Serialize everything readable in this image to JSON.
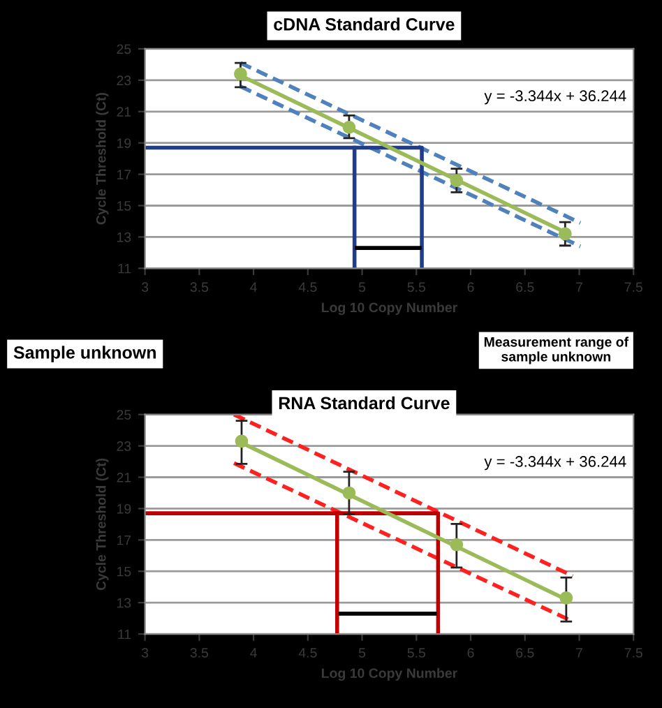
{
  "chart_data": [
    {
      "type": "scatter",
      "title": "cDNA Standard Curve",
      "xlabel": "Log 10 Copy Number",
      "ylabel": "Cycle Threshold (Ct)",
      "xlim": [
        3,
        7.5
      ],
      "xticks": [
        3,
        3.5,
        4,
        4.5,
        5,
        5.5,
        6,
        6.5,
        7,
        7.5
      ],
      "ylim": [
        11,
        25
      ],
      "yticks": [
        11,
        13,
        15,
        17,
        19,
        21,
        23,
        25
      ],
      "grid": "y",
      "legend": false,
      "annotations": [
        "y = -3.344x + 36.244"
      ],
      "series": [
        {
          "type": "line",
          "color": "#4f81bd",
          "line_style": "dashed",
          "x": [
            3.88,
            7.01
          ],
          "values": [
            24.1,
            13.9
          ]
        },
        {
          "type": "line",
          "color": "#4f81bd",
          "line_style": "dashed",
          "x": [
            3.88,
            7.01
          ],
          "values": [
            22.6,
            12.4
          ]
        },
        {
          "type": "line",
          "color": "#1f3d8a",
          "line_style": "solid",
          "x": [
            3,
            5.55,
            5.55
          ],
          "values": [
            18.7,
            18.7,
            11
          ]
        },
        {
          "type": "line",
          "color": "#1f3d8a",
          "line_style": "solid",
          "x": [
            4.93,
            4.93
          ],
          "values": [
            18.7,
            11
          ]
        },
        {
          "type": "line",
          "color": "#000000",
          "line_style": "solid",
          "x": [
            4.95,
            5.53
          ],
          "values": [
            12.3,
            12.3
          ]
        },
        {
          "type": "line",
          "color": "#9bbb59",
          "line_style": "solid",
          "x": [
            3.88,
            6.87
          ],
          "values": [
            23.3,
            13.3
          ]
        },
        {
          "type": "scatter",
          "color": "#9bbb59",
          "marker": "circle",
          "x": [
            3.88,
            4.88,
            5.87,
            6.87
          ],
          "values": [
            23.4,
            20.0,
            16.6,
            13.2
          ],
          "errors": [
            [
              22.55,
              24.1
            ],
            [
              19.3,
              20.75
            ],
            [
              15.85,
              17.35
            ],
            [
              12.45,
              13.95
            ]
          ]
        }
      ]
    },
    {
      "type": "scatter",
      "title": "RNA Standard Curve",
      "xlabel": "Log 10 Copy Number",
      "ylabel": "Cycle Threshold (Ct)",
      "xlim": [
        3,
        7.5
      ],
      "xticks": [
        3,
        3.5,
        4,
        4.5,
        5,
        5.5,
        6,
        6.5,
        7,
        7.5
      ],
      "ylim": [
        11,
        25
      ],
      "yticks": [
        11,
        13,
        15,
        17,
        19,
        21,
        23,
        25
      ],
      "grid": "y",
      "legend": false,
      "annotations": [
        "y = -3.344x + 36.244",
        "Sample unknown",
        "Measurement range of\nsample unknown"
      ],
      "series": [
        {
          "type": "line",
          "color": "#ff2020",
          "line_style": "dashed",
          "x": [
            3.82,
            6.94
          ],
          "values": [
            25.0,
            14.7
          ]
        },
        {
          "type": "line",
          "color": "#ff2020",
          "line_style": "dashed",
          "x": [
            3.82,
            6.94
          ],
          "values": [
            21.9,
            11.8
          ]
        },
        {
          "type": "line",
          "color": "#c00000",
          "line_style": "solid",
          "x": [
            3,
            5.7,
            5.7
          ],
          "values": [
            18.7,
            18.7,
            11
          ]
        },
        {
          "type": "line",
          "color": "#c00000",
          "line_style": "solid",
          "x": [
            4.77,
            4.77
          ],
          "values": [
            18.7,
            11
          ]
        },
        {
          "type": "line",
          "color": "#000000",
          "line_style": "solid",
          "x": [
            4.8,
            5.67
          ],
          "values": [
            12.3,
            12.3
          ]
        },
        {
          "type": "line",
          "color": "#9bbb59",
          "line_style": "solid",
          "x": [
            3.89,
            6.88
          ],
          "values": [
            23.2,
            13.2
          ]
        },
        {
          "type": "scatter",
          "color": "#9bbb59",
          "marker": "circle",
          "x": [
            3.89,
            4.88,
            5.87,
            6.88
          ],
          "values": [
            23.3,
            20.0,
            16.7,
            13.3
          ],
          "errors": [
            [
              21.85,
              24.6
            ],
            [
              18.65,
              21.35
            ],
            [
              15.24,
              18.02
            ],
            [
              11.8,
              14.6
            ]
          ]
        }
      ]
    }
  ]
}
